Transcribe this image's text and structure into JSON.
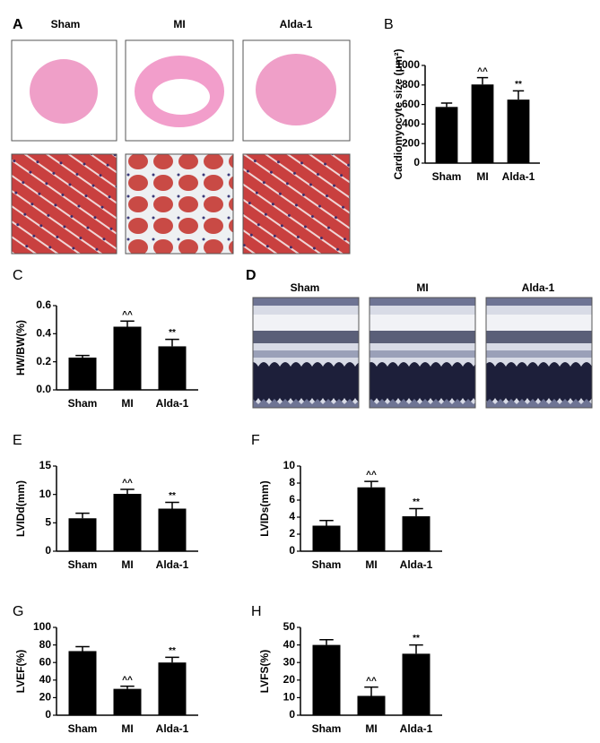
{
  "figure": {
    "panel_a": {
      "letter": "A",
      "labels": [
        "Sham",
        "MI",
        "Alda-1"
      ]
    },
    "panel_d": {
      "letter": "D",
      "labels": [
        "Sham",
        "MI",
        "Alda-1"
      ]
    }
  },
  "chart_data": [
    {
      "type": "bar",
      "letter": "B",
      "ylabel": "Cardiomyocyte size (μm²)",
      "categories": [
        "Sham",
        "MI",
        "Alda-1"
      ],
      "values": [
        575,
        805,
        650
      ],
      "errors": [
        40,
        70,
        90
      ],
      "annotations": [
        null,
        "^^",
        "**"
      ],
      "color": "#000000",
      "ylim": [
        0,
        1000
      ],
      "yticks": [
        0,
        200,
        400,
        600,
        800,
        1000
      ]
    },
    {
      "type": "bar",
      "letter": "C",
      "ylabel": "HW/BW(%)",
      "categories": [
        "Sham",
        "MI",
        "Alda-1"
      ],
      "values": [
        0.23,
        0.45,
        0.31
      ],
      "errors": [
        0.015,
        0.04,
        0.05
      ],
      "annotations": [
        null,
        "^^",
        "**"
      ],
      "color": "#000000",
      "ylim": [
        0,
        0.6
      ],
      "yticks": [
        {
          "value": 0,
          "label": "0.0"
        },
        0.2,
        0.4,
        0.6
      ]
    },
    {
      "type": "bar",
      "letter": "E",
      "ylabel": "LVIDd(mm)",
      "categories": [
        "Sham",
        "MI",
        "Alda-1"
      ],
      "values": [
        5.8,
        10.1,
        7.5
      ],
      "errors": [
        0.9,
        0.8,
        1.1
      ],
      "annotations": [
        null,
        "^^",
        "**"
      ],
      "color": "#000000",
      "ylim": [
        0,
        15
      ],
      "yticks": [
        0,
        5,
        10,
        15
      ]
    },
    {
      "type": "bar",
      "letter": "F",
      "ylabel": "LVIDs(mm)",
      "categories": [
        "Sham",
        "MI",
        "Alda-1"
      ],
      "values": [
        3.0,
        7.5,
        4.1
      ],
      "errors": [
        0.6,
        0.7,
        0.9
      ],
      "annotations": [
        null,
        "^^",
        "**"
      ],
      "color": "#000000",
      "ylim": [
        0,
        10
      ],
      "yticks": [
        0,
        2,
        4,
        6,
        8,
        10
      ]
    },
    {
      "type": "bar",
      "letter": "G",
      "ylabel": "LVEF(%)",
      "categories": [
        "Sham",
        "MI",
        "Alda-1"
      ],
      "values": [
        73,
        30,
        60
      ],
      "errors": [
        5,
        3,
        6
      ],
      "annotations": [
        null,
        "^^",
        "**"
      ],
      "color": "#000000",
      "ylim": [
        0,
        100
      ],
      "yticks": [
        0,
        20,
        40,
        60,
        80,
        100
      ]
    },
    {
      "type": "bar",
      "letter": "H",
      "ylabel": "LVFS(%)",
      "categories": [
        "Sham",
        "MI",
        "Alda-1"
      ],
      "values": [
        40,
        11,
        35
      ],
      "errors": [
        3,
        5,
        5
      ],
      "annotations": [
        null,
        "^^",
        "**"
      ],
      "color": "#000000",
      "ylim": [
        0,
        50
      ],
      "yticks": [
        0,
        10,
        20,
        30,
        40,
        50
      ]
    }
  ]
}
